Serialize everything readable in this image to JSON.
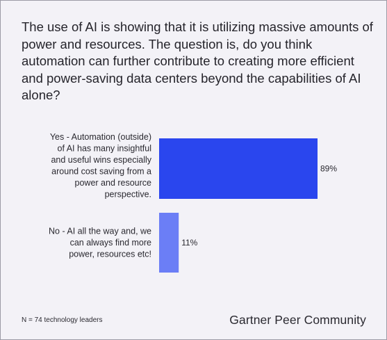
{
  "question": "The use of AI is showing that it is utilizing massive amounts of power and resources.  The question is, do you think automation can further contribute to creating more efficient and power-saving data centers beyond the capabilities of AI alone?",
  "footnote": "N = 74 technology leaders",
  "brand": "Gartner Peer Community",
  "chart_data": {
    "type": "bar",
    "orientation": "horizontal",
    "categories": [
      "Yes - Automation (outside) of AI has many insightful and useful wins especially around cost saving from a power and resource perspective.",
      "No - AI all the way and, we can always find more power, resources etc!"
    ],
    "category_lines": [
      [
        "Yes - Automation (outside)",
        "of AI has many insightful",
        "and useful wins especially",
        "around cost saving from a",
        "power and resource",
        "perspective."
      ],
      [
        "No - AI all the way and, we",
        "can always find more",
        "power, resources etc!"
      ]
    ],
    "values": [
      89,
      11
    ],
    "value_labels": [
      "89%",
      "11%"
    ],
    "unit": "%",
    "xlim": [
      0,
      100
    ],
    "colors": [
      "#2a46ee",
      "#6b7ef6"
    ],
    "grid": false,
    "legend": "none"
  }
}
